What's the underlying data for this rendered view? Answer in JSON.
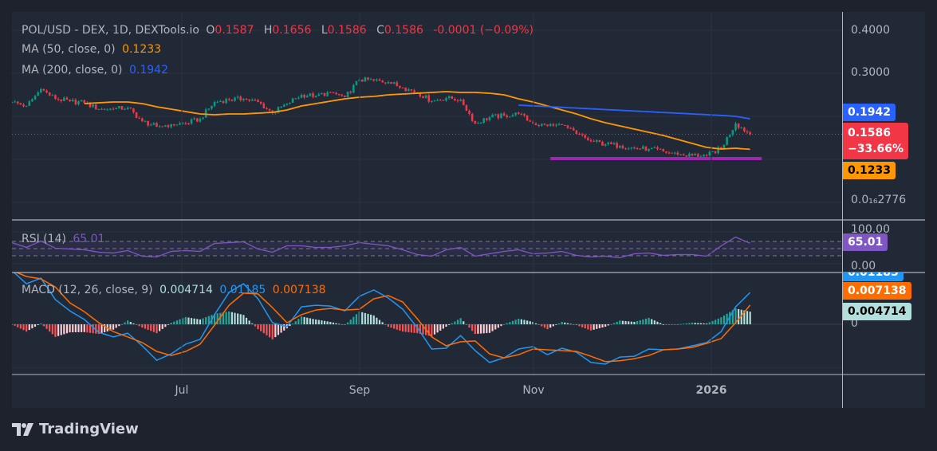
{
  "header": {
    "symbol": "POL/USD - DEX, 1D, DEXTools.io",
    "o_label": "O",
    "o": "0.1587",
    "h_label": "H",
    "h": "0.1656",
    "l_label": "L",
    "l": "0.1586",
    "c_label": "C",
    "c": "0.1586",
    "change": "-0.0001 (−0.09%)"
  },
  "ma50": {
    "label": "MA (50, close, 0)",
    "value": "0.1233",
    "color": "#ff9800"
  },
  "ma200": {
    "label": "MA (200, close, 0)",
    "value": "0.1942",
    "color": "#2962ff"
  },
  "rsi": {
    "label": "RSI (14)",
    "value": "65.01",
    "color": "#7e57c2"
  },
  "macd": {
    "label": "MACD (12, 26, close, 9)",
    "hist": "0.004714",
    "macd": "0.01185",
    "signal": "0.007138"
  },
  "price_axis": {
    "ticks": [
      "0.4000",
      "0.3000",
      "0.0₁₆2776"
    ],
    "tag_ma200": "0.1942",
    "tag_price": "0.1586",
    "tag_change": "−33.66%",
    "tag_ma50": "0.1233"
  },
  "rsi_axis": {
    "ticks": [
      "100.00",
      "0.00"
    ],
    "tag": "65.01"
  },
  "macd_axis": {
    "ticks": [
      "0"
    ],
    "tag_macd": "0.01185",
    "tag_signal": "0.007138",
    "tag_hist": "0.004714"
  },
  "time_axis": [
    "Jul",
    "Sep",
    "Nov",
    "2026"
  ],
  "brand": "TradingView",
  "colors": {
    "up": "#089981",
    "down": "#f23645",
    "support": "#9c27b0",
    "macd": "#2196f3",
    "signal": "#ff6d00"
  },
  "chart_data": {
    "type": "candlestick",
    "scale": "linear",
    "dates": [
      "2025-05-03",
      "2025-05-08",
      "2025-05-13",
      "2025-05-18",
      "2025-05-23",
      "2025-05-28",
      "2025-06-02",
      "2025-06-07",
      "2025-06-12",
      "2025-06-17",
      "2025-06-22",
      "2025-06-27",
      "2025-07-02",
      "2025-07-07",
      "2025-07-12",
      "2025-07-17",
      "2025-07-22",
      "2025-07-27",
      "2025-08-01",
      "2025-08-06",
      "2025-08-11",
      "2025-08-16",
      "2025-08-21",
      "2025-08-26",
      "2025-08-31",
      "2025-09-05",
      "2025-09-10",
      "2025-09-15",
      "2025-09-20",
      "2025-09-25",
      "2025-09-30",
      "2025-10-05",
      "2025-10-10",
      "2025-10-15",
      "2025-10-20",
      "2025-10-25",
      "2025-10-30",
      "2025-11-04",
      "2025-11-09",
      "2025-11-14",
      "2025-11-19",
      "2025-11-24",
      "2025-11-29",
      "2025-12-04",
      "2025-12-09",
      "2025-12-14",
      "2025-12-19",
      "2025-12-24",
      "2025-12-29",
      "2026-01-03",
      "2026-01-08",
      "2026-01-13"
    ],
    "close": [
      0.2333,
      0.2241,
      0.263,
      0.2407,
      0.2352,
      0.2315,
      0.2167,
      0.2167,
      0.2204,
      0.1889,
      0.1759,
      0.1815,
      0.1833,
      0.1944,
      0.2333,
      0.2389,
      0.2407,
      0.2333,
      0.2074,
      0.2296,
      0.25,
      0.2481,
      0.2556,
      0.2444,
      0.2852,
      0.2833,
      0.2796,
      0.2667,
      0.2556,
      0.2352,
      0.2426,
      0.2389,
      0.1833,
      0.1981,
      0.2019,
      0.2056,
      0.1833,
      0.1778,
      0.1796,
      0.1593,
      0.1426,
      0.1352,
      0.1315,
      0.1259,
      0.1241,
      0.1185,
      0.1111,
      0.1093,
      0.1093,
      0.1259,
      0.1833,
      0.1586
    ],
    "ma50": [
      null,
      null,
      null,
      null,
      null,
      0.2296,
      0.2315,
      0.2333,
      0.2333,
      0.2296,
      0.2222,
      0.2167,
      0.2111,
      0.2056,
      0.2037,
      0.2056,
      0.2056,
      0.2074,
      0.2093,
      0.2148,
      0.2241,
      0.2296,
      0.2352,
      0.2407,
      0.2444,
      0.2463,
      0.25,
      0.2519,
      0.2537,
      0.2556,
      0.2574,
      0.2556,
      0.2556,
      0.2537,
      0.25,
      0.2407,
      0.2333,
      0.2241,
      0.2148,
      0.2056,
      0.1944,
      0.1852,
      0.1778,
      0.1704,
      0.163,
      0.1556,
      0.1463,
      0.137,
      0.1278,
      0.1241,
      0.1259,
      0.1233
    ],
    "ma200": [
      null,
      null,
      null,
      null,
      null,
      null,
      null,
      null,
      null,
      null,
      null,
      null,
      null,
      null,
      null,
      null,
      null,
      null,
      null,
      null,
      null,
      null,
      null,
      null,
      null,
      null,
      null,
      null,
      null,
      null,
      null,
      null,
      null,
      null,
      null,
      0.226,
      0.2243,
      0.2226,
      0.2209,
      0.2192,
      0.2175,
      0.2158,
      0.2141,
      0.2124,
      0.2107,
      0.209,
      0.2073,
      0.2056,
      0.2039,
      0.2022,
      0.2,
      0.1942
    ],
    "support": {
      "level": 0.1019,
      "from": "2025-11-05",
      "to": "2026-01-17"
    },
    "price_range": [
      0.0163,
      0.4
    ],
    "rsi": [
      66.7,
      53.3,
      71.1,
      51.1,
      48.9,
      46.7,
      40.0,
      37.8,
      44.4,
      28.9,
      26.7,
      42.2,
      44.4,
      42.2,
      64.4,
      66.7,
      68.9,
      48.9,
      40.0,
      57.8,
      57.8,
      53.3,
      53.3,
      57.8,
      66.7,
      62.2,
      57.8,
      46.7,
      33.3,
      28.9,
      46.7,
      53.3,
      28.9,
      35.6,
      42.2,
      46.7,
      35.6,
      37.8,
      42.2,
      31.1,
      26.7,
      28.9,
      24.4,
      35.6,
      37.8,
      31.1,
      33.3,
      33.3,
      28.9,
      57.8,
      82.2,
      65.01
    ],
    "rsi_levels": [
      70,
      50,
      30
    ],
    "macd_line": [
      0.02,
      0.0151,
      0.0172,
      0.0092,
      0.005,
      0.0018,
      -0.003,
      -0.0047,
      -0.0033,
      -0.008,
      -0.0134,
      -0.011,
      -0.0074,
      -0.0056,
      0.0036,
      0.0119,
      0.0151,
      0.0095,
      0.0006,
      -0.0009,
      0.0065,
      0.0071,
      0.0068,
      0.005,
      0.0104,
      0.0128,
      0.0098,
      0.0056,
      -0.0012,
      -0.0092,
      -0.0089,
      -0.0042,
      -0.0098,
      -0.0142,
      -0.0125,
      -0.0092,
      -0.0083,
      -0.0113,
      -0.0089,
      -0.0104,
      -0.0142,
      -0.0148,
      -0.0122,
      -0.0119,
      -0.0092,
      -0.0095,
      -0.0092,
      -0.008,
      -0.0068,
      -0.0027,
      0.0065,
      0.01185
    ],
    "signal_line": [
      0.02,
      0.0178,
      0.0169,
      0.0139,
      0.008,
      0.0047,
      0.0006,
      -0.0027,
      -0.0047,
      -0.0068,
      -0.0101,
      -0.0116,
      -0.0101,
      -0.0074,
      -0.0003,
      0.0071,
      0.0116,
      0.0113,
      0.0062,
      0.0006,
      0.0036,
      0.0053,
      0.0059,
      0.0053,
      0.0056,
      0.0095,
      0.0107,
      0.0083,
      0.0021,
      -0.0047,
      -0.008,
      -0.0065,
      -0.0062,
      -0.011,
      -0.0125,
      -0.0113,
      -0.0092,
      -0.0095,
      -0.0098,
      -0.0101,
      -0.0119,
      -0.0139,
      -0.0136,
      -0.0128,
      -0.0116,
      -0.0095,
      -0.0092,
      -0.0086,
      -0.0071,
      -0.0053,
      0.0006,
      0.007138
    ]
  }
}
